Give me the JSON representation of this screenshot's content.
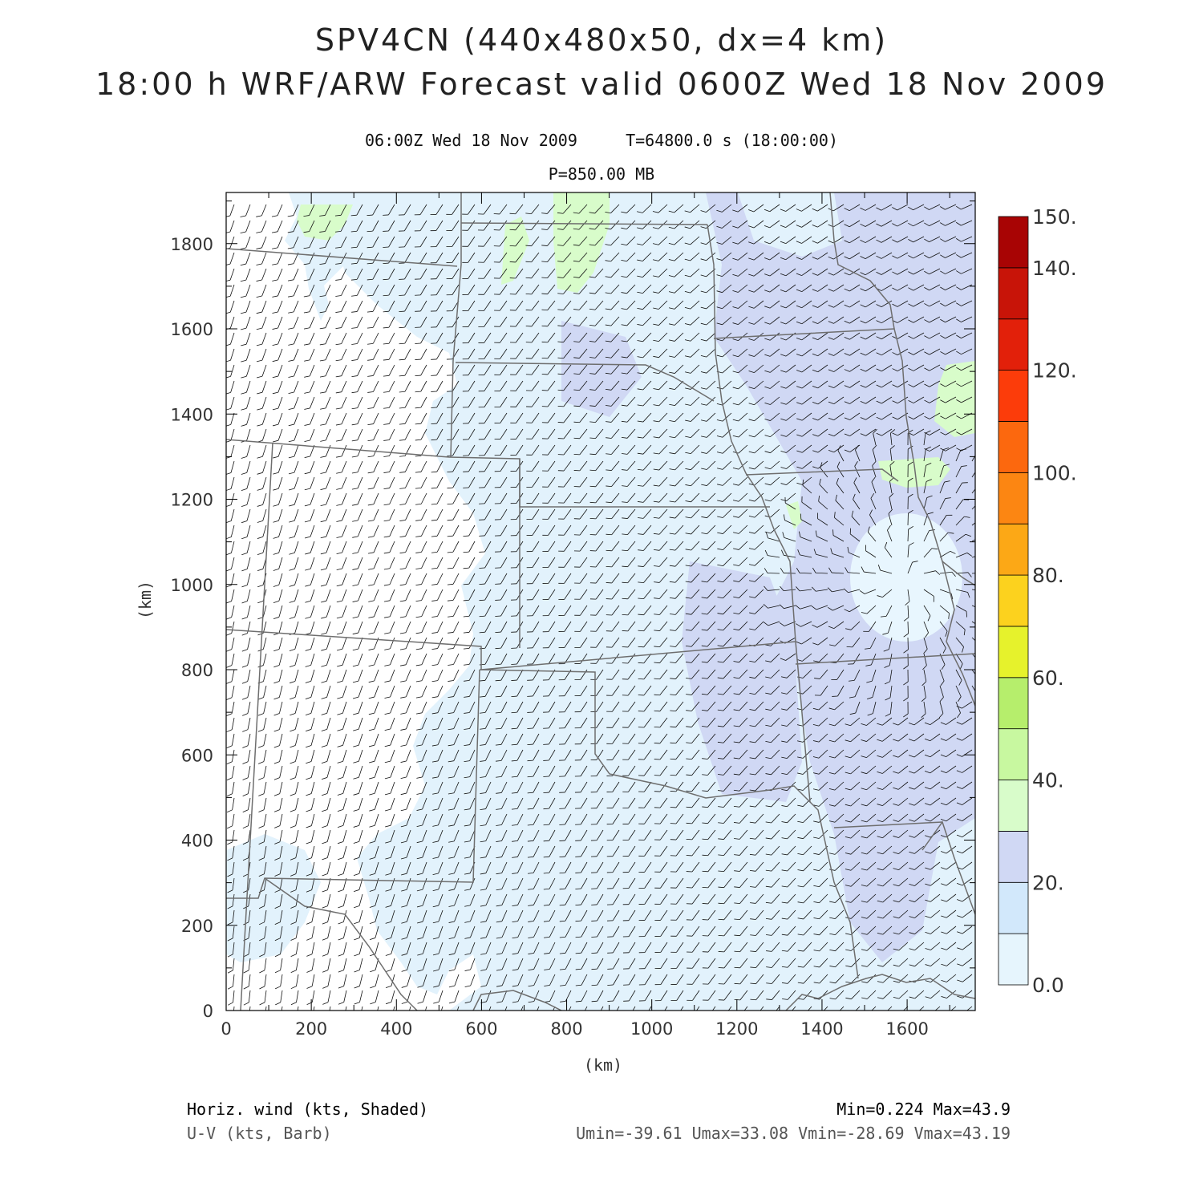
{
  "title": {
    "line1": "SPV4CN (440x480x50, dx=4 km)",
    "line2": "18:00 h WRF/ARW Forecast valid 0600Z Wed 18 Nov 2009"
  },
  "subtitle": {
    "time_line": "06:00Z Wed 18 Nov 2009     T=64800.0 s (18:00:00)",
    "level": "P=850.00 MB"
  },
  "axes": {
    "xlabel": "(km)",
    "ylabel": "(km)",
    "x_ticks": [
      "0",
      "200",
      "400",
      "600",
      "800",
      "1000",
      "1200",
      "1400",
      "1600"
    ],
    "y_ticks": [
      "0",
      "200",
      "400",
      "600",
      "800",
      "1000",
      "1200",
      "1400",
      "1600",
      "1800"
    ],
    "x_range": [
      0,
      1760
    ],
    "y_range": [
      0,
      1920
    ]
  },
  "colorbar": {
    "labels": [
      "0.0",
      "20.",
      "40.",
      "60.",
      "80.",
      "100.",
      "120.",
      "140.",
      "150."
    ],
    "levels": [
      0,
      10,
      20,
      30,
      40,
      50,
      60,
      70,
      80,
      90,
      100,
      110,
      120,
      130,
      140,
      150
    ],
    "colors": [
      "#e6f5fd",
      "#d2e8fb",
      "#d0d8f4",
      "#d8fcca",
      "#c8f8a0",
      "#b6ee6c",
      "#e6f22c",
      "#fcd21e",
      "#fca816",
      "#fc8612",
      "#fc680e",
      "#fc3c0a",
      "#e2200a",
      "#c81408",
      "#a80404"
    ]
  },
  "footer": {
    "field_label": "Horiz. wind (kts, Shaded)",
    "barb_label": "U-V (kts, Barb)",
    "minmax": "Min=0.224 Max=43.9",
    "uv_stats": "Umin=-39.61 Umax=33.08 Vmin=-28.69 Vmax=43.19"
  },
  "chart_data": {
    "type": "heatmap",
    "field": "Horizontal wind speed at 850 mb (kts) with U-V wind barbs",
    "x_units": "km",
    "y_units": "km",
    "min": 0.224,
    "max": 43.9,
    "umin": -39.61,
    "umax": 33.08,
    "vmin": -28.69,
    "vmax": 43.19
  }
}
